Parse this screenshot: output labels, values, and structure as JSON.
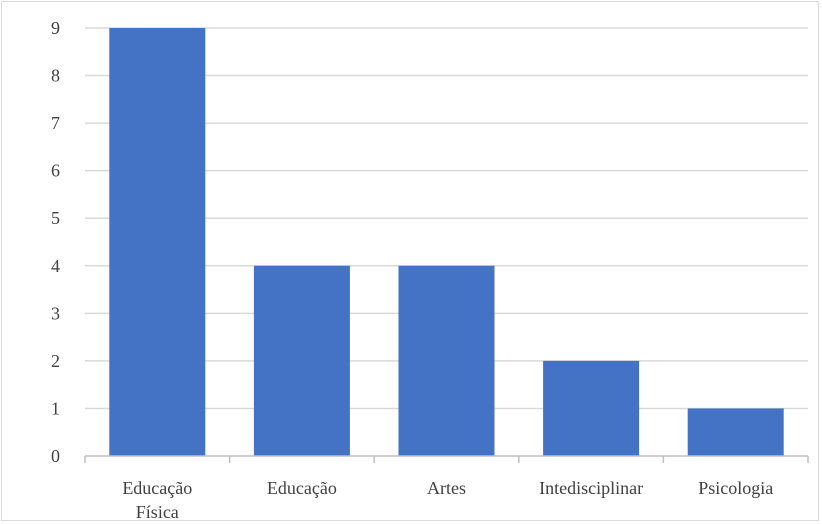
{
  "chart_data": {
    "type": "bar",
    "categories": [
      "Educação Física",
      "Educação",
      "Artes",
      "Intedisciplinar",
      "Psicologia"
    ],
    "category_lines": [
      [
        "Educação",
        "Física"
      ],
      [
        "Educação"
      ],
      [
        "Artes"
      ],
      [
        "Intedisciplinar"
      ],
      [
        "Psicologia"
      ]
    ],
    "values": [
      9,
      4,
      4,
      2,
      1
    ],
    "title": "",
    "xlabel": "",
    "ylabel": "",
    "ylim": [
      0,
      9
    ],
    "yticks": [
      "0",
      "1",
      "2",
      "3",
      "4",
      "5",
      "6",
      "7",
      "8",
      "9"
    ],
    "grid": true,
    "legend": "none",
    "colors": {
      "bar": "#4472c4",
      "grid": "#d9d9d9",
      "axis": "#bfbfbf",
      "text": "#404040"
    }
  }
}
